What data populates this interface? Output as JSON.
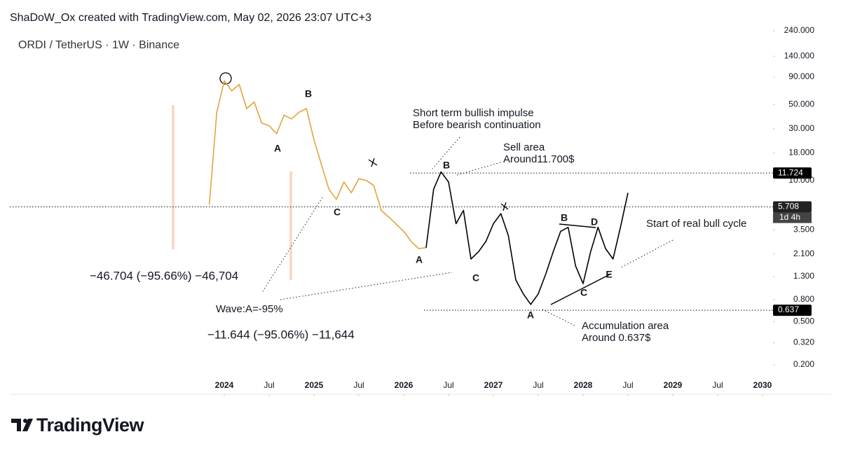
{
  "header": "ShaDoW_Ox created with TradingView.com, May 02, 2026 23:07 UTC+3",
  "footer_brand": "TradingView",
  "chart_data": {
    "type": "line",
    "title": "ORDI / TetherUS · 1W · Binance",
    "log_scale": true,
    "ylim": [
      0.2,
      240
    ],
    "yticks": [
      {
        "value": 240,
        "label": "240.000"
      },
      {
        "value": 140,
        "label": "140.000"
      },
      {
        "value": 90,
        "label": "90.000"
      },
      {
        "value": 50,
        "label": "50.000"
      },
      {
        "value": 30,
        "label": "30.000"
      },
      {
        "value": 18,
        "label": "18.000"
      },
      {
        "value": 10,
        "label": "10.000"
      },
      {
        "value": 3.5,
        "label": "3.500"
      },
      {
        "value": 2.1,
        "label": "2.100"
      },
      {
        "value": 1.3,
        "label": "1.300"
      },
      {
        "value": 0.8,
        "label": "0.800"
      },
      {
        "value": 0.5,
        "label": "0.500"
      },
      {
        "value": 0.32,
        "label": "0.320"
      },
      {
        "value": 0.2,
        "label": "0.200"
      }
    ],
    "xticks": [
      {
        "value": "2024-01",
        "label": "2024"
      },
      {
        "value": "2024-07",
        "label": "Jul"
      },
      {
        "value": "2025-01",
        "label": "2025"
      },
      {
        "value": "2025-07",
        "label": "Jul"
      },
      {
        "value": "2026-01",
        "label": "2026"
      },
      {
        "value": "2026-07",
        "label": "Jul"
      },
      {
        "value": "2027-01",
        "label": "2027"
      },
      {
        "value": "2027-07",
        "label": "Jul"
      },
      {
        "value": "2028-01",
        "label": "2028"
      },
      {
        "value": "2028-07",
        "label": "Jul"
      },
      {
        "value": "2029-01",
        "label": "2029"
      },
      {
        "value": "2029-07",
        "label": "Jul"
      },
      {
        "value": "2030-01",
        "label": "2030"
      }
    ],
    "series": [
      {
        "color": "#e3a33a",
        "x": [
          "2023-11",
          "2023-12",
          "2024-01",
          "2024-02",
          "2024-03",
          "2024-04",
          "2024-05",
          "2024-06",
          "2024-07",
          "2024-08",
          "2024-09",
          "2024-10",
          "2024-11",
          "2024-12",
          "2025-01",
          "2025-02",
          "2025-03",
          "2025-04",
          "2025-05",
          "2025-06",
          "2025-07",
          "2025-08",
          "2025-09",
          "2025-10",
          "2025-11",
          "2025-12",
          "2026-01",
          "2026-02",
          "2026-03",
          "2026-04"
        ],
        "values": [
          6,
          42.6,
          83,
          67,
          77,
          46,
          53,
          34,
          32,
          27,
          40,
          37,
          42.6,
          46,
          23.7,
          14,
          8.3,
          6.7,
          9.7,
          7.7,
          10.4,
          10,
          9,
          5.3,
          4.6,
          3.96,
          3.4,
          2.74,
          2.36,
          2.4
        ]
      },
      {
        "color": "#000000",
        "x": [
          "2026-04",
          "2026-05",
          "2026-06",
          "2026-07",
          "2026-08",
          "2026-09",
          "2026-10",
          "2026-11",
          "2026-12",
          "2027-01",
          "2027-02",
          "2027-03",
          "2027-04",
          "2027-05",
          "2027-06",
          "2027-07",
          "2027-08",
          "2027-09",
          "2027-10",
          "2027-11",
          "2027-12",
          "2028-01",
          "2028-02",
          "2028-03",
          "2028-04",
          "2028-05",
          "2028-06",
          "2028-07"
        ],
        "values": [
          2.4,
          8.3,
          12,
          9.7,
          4,
          5.3,
          1.89,
          2.2,
          2.74,
          4,
          4.95,
          3.12,
          1.21,
          0.9,
          0.72,
          0.9,
          1.37,
          2.2,
          3.4,
          3.7,
          1.63,
          1.12,
          2.2,
          3.7,
          2.36,
          1.89,
          3.7,
          7.7
        ]
      }
    ],
    "price_lines": [
      {
        "value": 11.724,
        "label": "11.724"
      },
      {
        "value": 5.708,
        "label": "5.708",
        "countdown": "1d 4h"
      },
      {
        "value": 0.637,
        "label": "0.637"
      }
    ],
    "wave_labels": [
      "A",
      "B",
      "C",
      "A",
      "B",
      "C",
      "A",
      "B",
      "D",
      "C",
      "E"
    ],
    "annotations": [
      "Short term bullish impulse",
      "Before bearish continuation",
      "Sell area",
      "Around11.700$",
      "Start of real bull cycle",
      "−46.704 (−95.66%) −46,704",
      "Wave:A=-95%",
      "−11.644 (−95.06%) −11,644",
      "Accumulation area",
      "Around 0.637$"
    ]
  }
}
